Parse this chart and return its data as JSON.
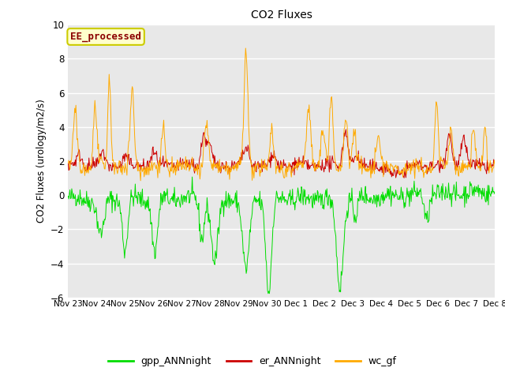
{
  "title": "CO2 Fluxes",
  "ylabel": "CO2 Fluxes (urology/m2/s)",
  "ylim": [
    -6,
    10
  ],
  "yticks": [
    -6,
    -4,
    -2,
    0,
    2,
    4,
    6,
    8,
    10
  ],
  "bg_color": "#e8e8e8",
  "fig_bg": "#ffffff",
  "annotation_text": "EE_processed",
  "annotation_color": "#8B0000",
  "annotation_bg": "#ffffcc",
  "annotation_border": "#cccc00",
  "line_colors": {
    "gpp": "#00dd00",
    "er": "#cc0000",
    "wc": "#ffaa00"
  },
  "legend_labels": [
    "gpp_ANNnight",
    "er_ANNnight",
    "wc_gf"
  ],
  "n_days": 15,
  "n_points_per_day": 48,
  "seed": 42
}
